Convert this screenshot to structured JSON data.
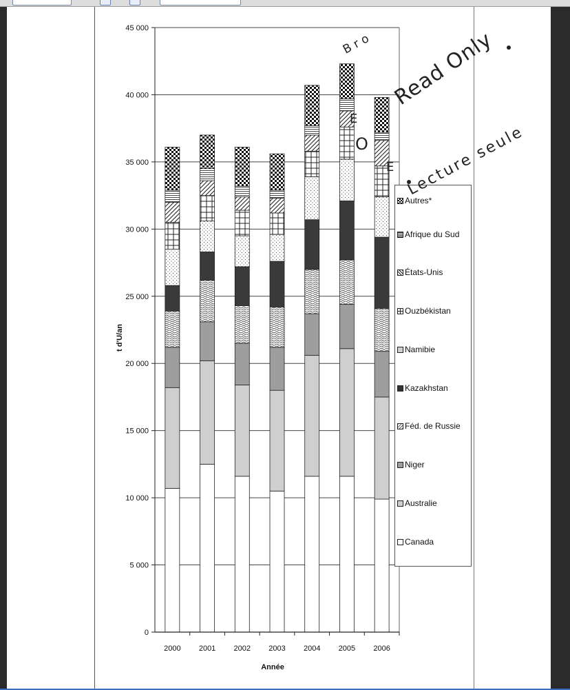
{
  "window": {
    "toolbar_icons": [
      "page-number-field",
      "fit-page-icon",
      "fit-width-icon",
      "zoom-field"
    ]
  },
  "watermark": {
    "line_upper": "B r o                              n",
    "read_only": "Read Only",
    "lecture": "Lecture seule",
    "marks": [
      "O",
      "E",
      "E"
    ]
  },
  "colors": {
    "bar_edge": "#222222",
    "gridline": "#444444",
    "page": "#ffffff"
  },
  "chart_data": {
    "type": "bar",
    "stacked": true,
    "ylabel": "t d'U/an",
    "xlabel": "Année",
    "ylim": [
      0,
      45000
    ],
    "yticks": [
      0,
      5000,
      10000,
      15000,
      20000,
      25000,
      30000,
      35000,
      40000,
      45000
    ],
    "ytick_labels": [
      "0",
      "5 000",
      "10 000",
      "15 000",
      "20 000",
      "25 000",
      "30 000",
      "35 000",
      "40 000",
      "45 000"
    ],
    "grid": true,
    "legend_position": "right",
    "categories": [
      "2000",
      "2001",
      "2002",
      "2003",
      "2004",
      "2005",
      "2006"
    ],
    "series": [
      {
        "name": "Canada",
        "pattern": "white",
        "values": [
          10700,
          12500,
          11600,
          10500,
          11600,
          11600,
          9900
        ]
      },
      {
        "name": "Australie",
        "pattern": "lightgray",
        "values": [
          7500,
          7700,
          6800,
          7500,
          9000,
          9500,
          7600
        ]
      },
      {
        "name": "Niger",
        "pattern": "midgray",
        "values": [
          3000,
          2900,
          3100,
          3200,
          3100,
          3300,
          3400
        ]
      },
      {
        "name": "Féd. de Russie",
        "pattern": "wavy",
        "values": [
          2700,
          3100,
          2800,
          3000,
          3300,
          3300,
          3200
        ]
      },
      {
        "name": "Kazakhstan",
        "pattern": "dark",
        "values": [
          1900,
          2100,
          2900,
          3400,
          3700,
          4400,
          5300
        ]
      },
      {
        "name": "Namibie",
        "pattern": "dots",
        "values": [
          2700,
          2300,
          2300,
          2000,
          3200,
          3100,
          3000
        ]
      },
      {
        "name": "Ouzbékistan",
        "pattern": "grid",
        "values": [
          2000,
          1900,
          1900,
          1600,
          1900,
          2400,
          2300
        ]
      },
      {
        "name": "États-Unis",
        "pattern": "diag",
        "values": [
          1500,
          1100,
          1000,
          1100,
          1200,
          1200,
          1900
        ]
      },
      {
        "name": "Afrique du Sud",
        "pattern": "hlines",
        "values": [
          900,
          900,
          800,
          600,
          700,
          900,
          600
        ]
      },
      {
        "name": "Autres*",
        "pattern": "checker",
        "values": [
          3200,
          2500,
          2900,
          2700,
          3000,
          2600,
          2600
        ]
      }
    ]
  }
}
